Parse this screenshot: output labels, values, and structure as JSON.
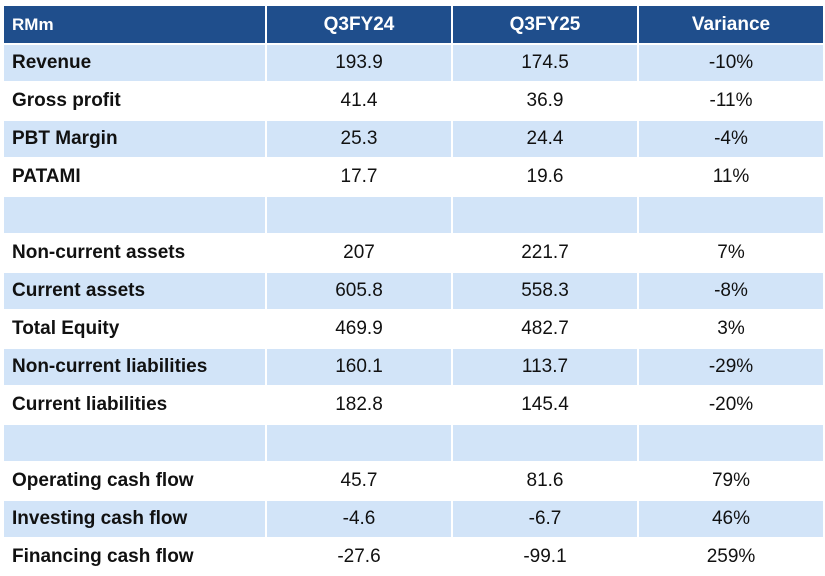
{
  "table": {
    "header": [
      "RMm",
      "Q3FY24",
      "Q3FY25",
      "Variance"
    ],
    "rows": [
      [
        "Revenue",
        "193.9",
        "174.5",
        "-10%"
      ],
      [
        "Gross profit",
        "41.4",
        "36.9",
        "-11%"
      ],
      [
        "PBT Margin",
        "25.3",
        "24.4",
        "-4%"
      ],
      [
        "PATAMI",
        "17.7",
        "19.6",
        "11%"
      ],
      null,
      [
        "Non-current assets",
        "207",
        "221.7",
        "7%"
      ],
      [
        "Current assets",
        "605.8",
        "558.3",
        "-8%"
      ],
      [
        "Total Equity",
        "469.9",
        "482.7",
        "3%"
      ],
      [
        "Non-current liabilities",
        "160.1",
        "113.7",
        "-29%"
      ],
      [
        "Current liabilities",
        "182.8",
        "145.4",
        "-20%"
      ],
      null,
      [
        "Operating cash flow",
        "45.7",
        "81.6",
        "79%"
      ],
      [
        "Investing cash flow",
        "-4.6",
        "-6.7",
        "46%"
      ],
      [
        "Financing cash flow",
        "-27.6",
        "-99.1",
        "259%"
      ]
    ]
  }
}
